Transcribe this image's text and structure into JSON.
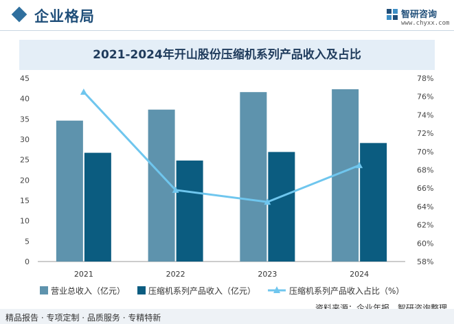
{
  "header": {
    "section_title": "企业格局",
    "logo_name": "智研咨询",
    "logo_url": "www.chyxx.com"
  },
  "chart_data": {
    "type": "bar",
    "title": "2021-2024年开山股份压缩机系列产品收入及占比",
    "categories": [
      "2021",
      "2022",
      "2023",
      "2024"
    ],
    "series": [
      {
        "name": "营业总收入（亿元）",
        "type": "bar",
        "axis": "left",
        "color": "#5e93ad",
        "values": [
          34.6,
          37.3,
          41.6,
          42.3
        ]
      },
      {
        "name": "压缩机系列产品收入（亿元）",
        "type": "bar",
        "axis": "left",
        "color": "#0b5c80",
        "values": [
          26.7,
          24.8,
          26.9,
          29.1
        ]
      },
      {
        "name": "压缩机系列产品收入占比（%）",
        "type": "line",
        "axis": "right",
        "color": "#6fc6ee",
        "values": [
          76.5,
          65.8,
          64.5,
          68.5
        ]
      }
    ],
    "y_left": {
      "min": 0,
      "max": 45,
      "ticks": [
        0,
        5,
        10,
        15,
        20,
        25,
        30,
        35,
        40,
        45
      ]
    },
    "y_right": {
      "min": 58,
      "max": 78,
      "ticks": [
        "58%",
        "60%",
        "62%",
        "64%",
        "66%",
        "68%",
        "70%",
        "72%",
        "74%",
        "76%",
        "78%"
      ]
    },
    "grid": false,
    "legend_position": "bottom"
  },
  "footer": {
    "left": "精品报告 · 专项定制 · 品质服务 · 专精特新",
    "source": "资料来源：企业年报、智研咨询整理"
  }
}
